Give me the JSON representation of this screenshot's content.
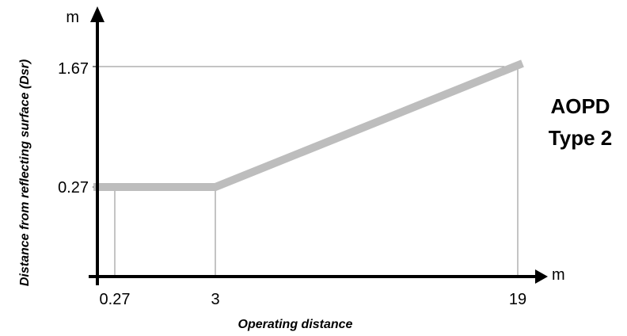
{
  "chart_data": {
    "type": "line",
    "xlabel": "Operating distance",
    "ylabel": "Distance from reflecting surface (Dsr)",
    "x_unit": "m",
    "y_unit": "m",
    "x_ticks": [
      "0.27",
      "3",
      "19"
    ],
    "y_ticks": [
      "0.27",
      "1.67"
    ],
    "x": [
      0,
      3,
      19
    ],
    "y": [
      0.27,
      0.27,
      1.67
    ],
    "annotation_lines": [
      "AOPD",
      "Type 2"
    ],
    "line_color": "#bdbdbd",
    "axis_color": "#000000",
    "grid": false
  }
}
